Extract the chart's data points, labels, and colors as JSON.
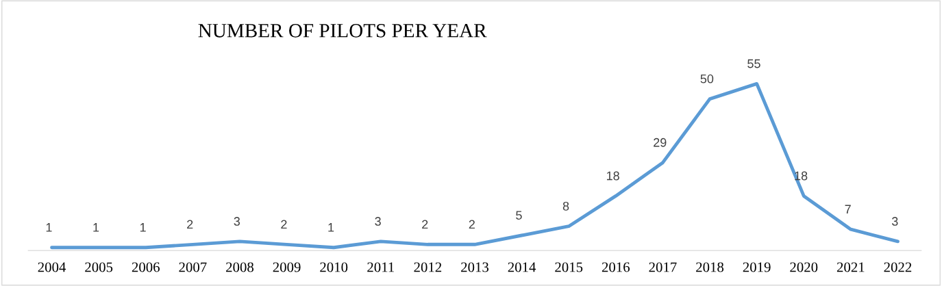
{
  "chart_data": {
    "type": "line",
    "title": "NUMBER OF PILOTS PER YEAR",
    "categories": [
      "2004",
      "2005",
      "2006",
      "2007",
      "2008",
      "2009",
      "2010",
      "2011",
      "2012",
      "2013",
      "2014",
      "2015",
      "2016",
      "2017",
      "2018",
      "2019",
      "2020",
      "2021",
      "2022"
    ],
    "series": [
      {
        "color": "#5b9bd5",
        "values": [
          1,
          1,
          1,
          2,
          3,
          2,
          1,
          3,
          2,
          2,
          5,
          8,
          18,
          29,
          50,
          55,
          18,
          7,
          3
        ]
      }
    ],
    "data_labels": true,
    "grid": false,
    "legend": false,
    "marker": "none",
    "line_style": "solid"
  }
}
